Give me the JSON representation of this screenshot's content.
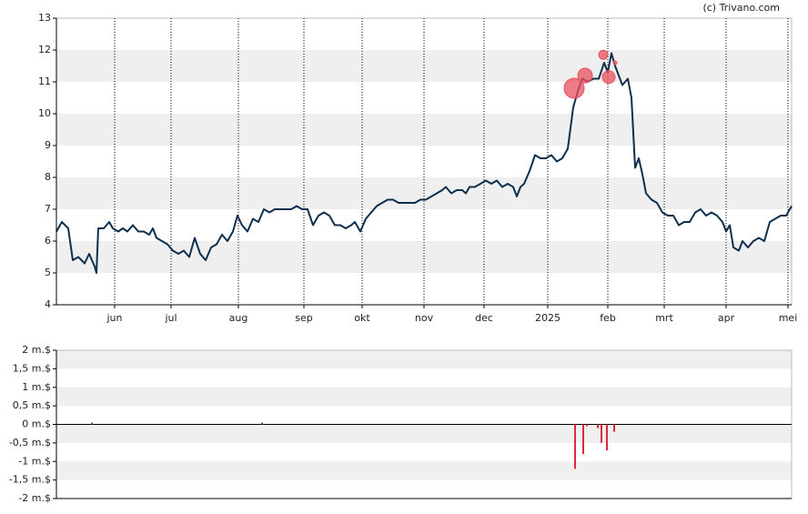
{
  "watermark": "(c) Trivano.com",
  "chart_data": [
    {
      "type": "line",
      "x": [
        0,
        3,
        6.5,
        9,
        12,
        15.5,
        18,
        21,
        22,
        23,
        26,
        29,
        31,
        34,
        36.5,
        39,
        42,
        45,
        48,
        51,
        53,
        55,
        58,
        61,
        64,
        67,
        70,
        73,
        76,
        79,
        82,
        85,
        88,
        91,
        94,
        97,
        99.5,
        102,
        105,
        108,
        111,
        114,
        117,
        120,
        123,
        126,
        129,
        132,
        135,
        138,
        141,
        144,
        147,
        150,
        153,
        156,
        159,
        162,
        164,
        167,
        170,
        173,
        176,
        179,
        182,
        185,
        188,
        191,
        194,
        197,
        200,
        203,
        206,
        209,
        212,
        214,
        217,
        220,
        223,
        225,
        227,
        230,
        233,
        236,
        239,
        242,
        245,
        248,
        251,
        253,
        255,
        257,
        260,
        263,
        266,
        269,
        272,
        275,
        278,
        281,
        284,
        287,
        289,
        292,
        295,
        298,
        301,
        303,
        305,
        307,
        309,
        311,
        314,
        316,
        318,
        320,
        322,
        324,
        327,
        330,
        333,
        336,
        339,
        342,
        345,
        348,
        351,
        354,
        357,
        360,
        363,
        366,
        368,
        370,
        372,
        375,
        377,
        380,
        383,
        386,
        389,
        392,
        395,
        398,
        401,
        404
      ],
      "values": [
        6.3,
        6.6,
        6.4,
        5.4,
        5.5,
        5.3,
        5.6,
        5.2,
        5.0,
        6.4,
        6.4,
        6.6,
        6.4,
        6.3,
        6.4,
        6.3,
        6.5,
        6.3,
        6.3,
        6.2,
        6.4,
        6.1,
        6.0,
        5.9,
        5.7,
        5.6,
        5.7,
        5.5,
        6.1,
        5.6,
        5.4,
        5.8,
        5.9,
        6.2,
        6.0,
        6.3,
        6.8,
        6.5,
        6.3,
        6.7,
        6.6,
        7.0,
        6.9,
        7.0,
        7.0,
        7.0,
        7.0,
        7.1,
        7.0,
        7.0,
        6.5,
        6.8,
        6.9,
        6.8,
        6.5,
        6.5,
        6.4,
        6.5,
        6.6,
        6.3,
        6.7,
        6.9,
        7.1,
        7.2,
        7.3,
        7.3,
        7.2,
        7.2,
        7.2,
        7.2,
        7.3,
        7.3,
        7.4,
        7.5,
        7.6,
        7.7,
        7.5,
        7.6,
        7.6,
        7.5,
        7.7,
        7.7,
        7.8,
        7.9,
        7.8,
        7.9,
        7.7,
        7.8,
        7.7,
        7.4,
        7.7,
        7.8,
        8.2,
        8.7,
        8.6,
        8.6,
        8.7,
        8.5,
        8.6,
        8.9,
        10.2,
        10.8,
        11.1,
        11.0,
        11.1,
        11.1,
        11.6,
        11.3,
        11.9,
        11.5,
        11.2,
        10.9,
        11.1,
        10.5,
        8.3,
        8.6,
        8.1,
        7.5,
        7.3,
        7.2,
        6.9,
        6.8,
        6.8,
        6.5,
        6.6,
        6.6,
        6.9,
        7.0,
        6.8,
        6.9,
        6.8,
        6.6,
        6.3,
        6.5,
        5.8,
        5.7,
        6.0,
        5.8,
        6.0,
        6.1,
        6.0,
        6.6,
        6.7,
        6.8,
        6.8,
        7.1
      ],
      "color": "#0e2f4d",
      "markers": {
        "x": [
          284.5,
          290.5,
          300.5,
          303.5,
          307
        ],
        "values": [
          10.8,
          11.2,
          11.85,
          11.15,
          11.6
        ],
        "sizes": [
          11,
          8,
          5,
          7,
          2
        ],
        "color": "#e8505f"
      },
      "xlim": [
        0,
        404
      ],
      "xticks": [
        {
          "value": 32,
          "label": "jun"
        },
        {
          "value": 63,
          "label": "jul"
        },
        {
          "value": 100,
          "label": "aug"
        },
        {
          "value": 136,
          "label": "sep"
        },
        {
          "value": 168,
          "label": "okt"
        },
        {
          "value": 202,
          "label": "nov"
        },
        {
          "value": 235,
          "label": "dec"
        },
        {
          "value": 270,
          "label": "2025"
        },
        {
          "value": 303,
          "label": "feb"
        },
        {
          "value": 334,
          "label": "mrt"
        },
        {
          "value": 368,
          "label": "apr"
        },
        {
          "value": 402,
          "label": "mei"
        }
      ],
      "ylim": [
        4,
        13
      ],
      "yticks": [
        4,
        5,
        6,
        7,
        8,
        9,
        10,
        11,
        12,
        13
      ],
      "xgrid": true
    },
    {
      "type": "bar",
      "x": [
        19.5,
        113,
        285,
        289.5,
        291.5,
        297.5,
        299.5,
        302.5,
        306.5
      ],
      "values": [
        0.05,
        0.05,
        -1.2,
        -0.8,
        -0.05,
        -0.1,
        -0.5,
        -0.7,
        -0.2
      ],
      "positive_color": "#2e7d4f",
      "negative_color": "#e0283c",
      "xlim": [
        0,
        404
      ],
      "ylim": [
        -2,
        2
      ],
      "yticks": [
        {
          "value": -2,
          "label": "-2 m.$"
        },
        {
          "value": -1.5,
          "label": "-1,5 m.$"
        },
        {
          "value": -1,
          "label": "-1 m.$"
        },
        {
          "value": -0.5,
          "label": "-0,5 m.$"
        },
        {
          "value": 0,
          "label": "0 m.$"
        },
        {
          "value": 0.5,
          "label": "0,5 m.$"
        },
        {
          "value": 1,
          "label": "1 m.$"
        },
        {
          "value": 1.5,
          "label": "1,5 m.$"
        },
        {
          "value": 2,
          "label": "2 m.$"
        }
      ]
    }
  ]
}
